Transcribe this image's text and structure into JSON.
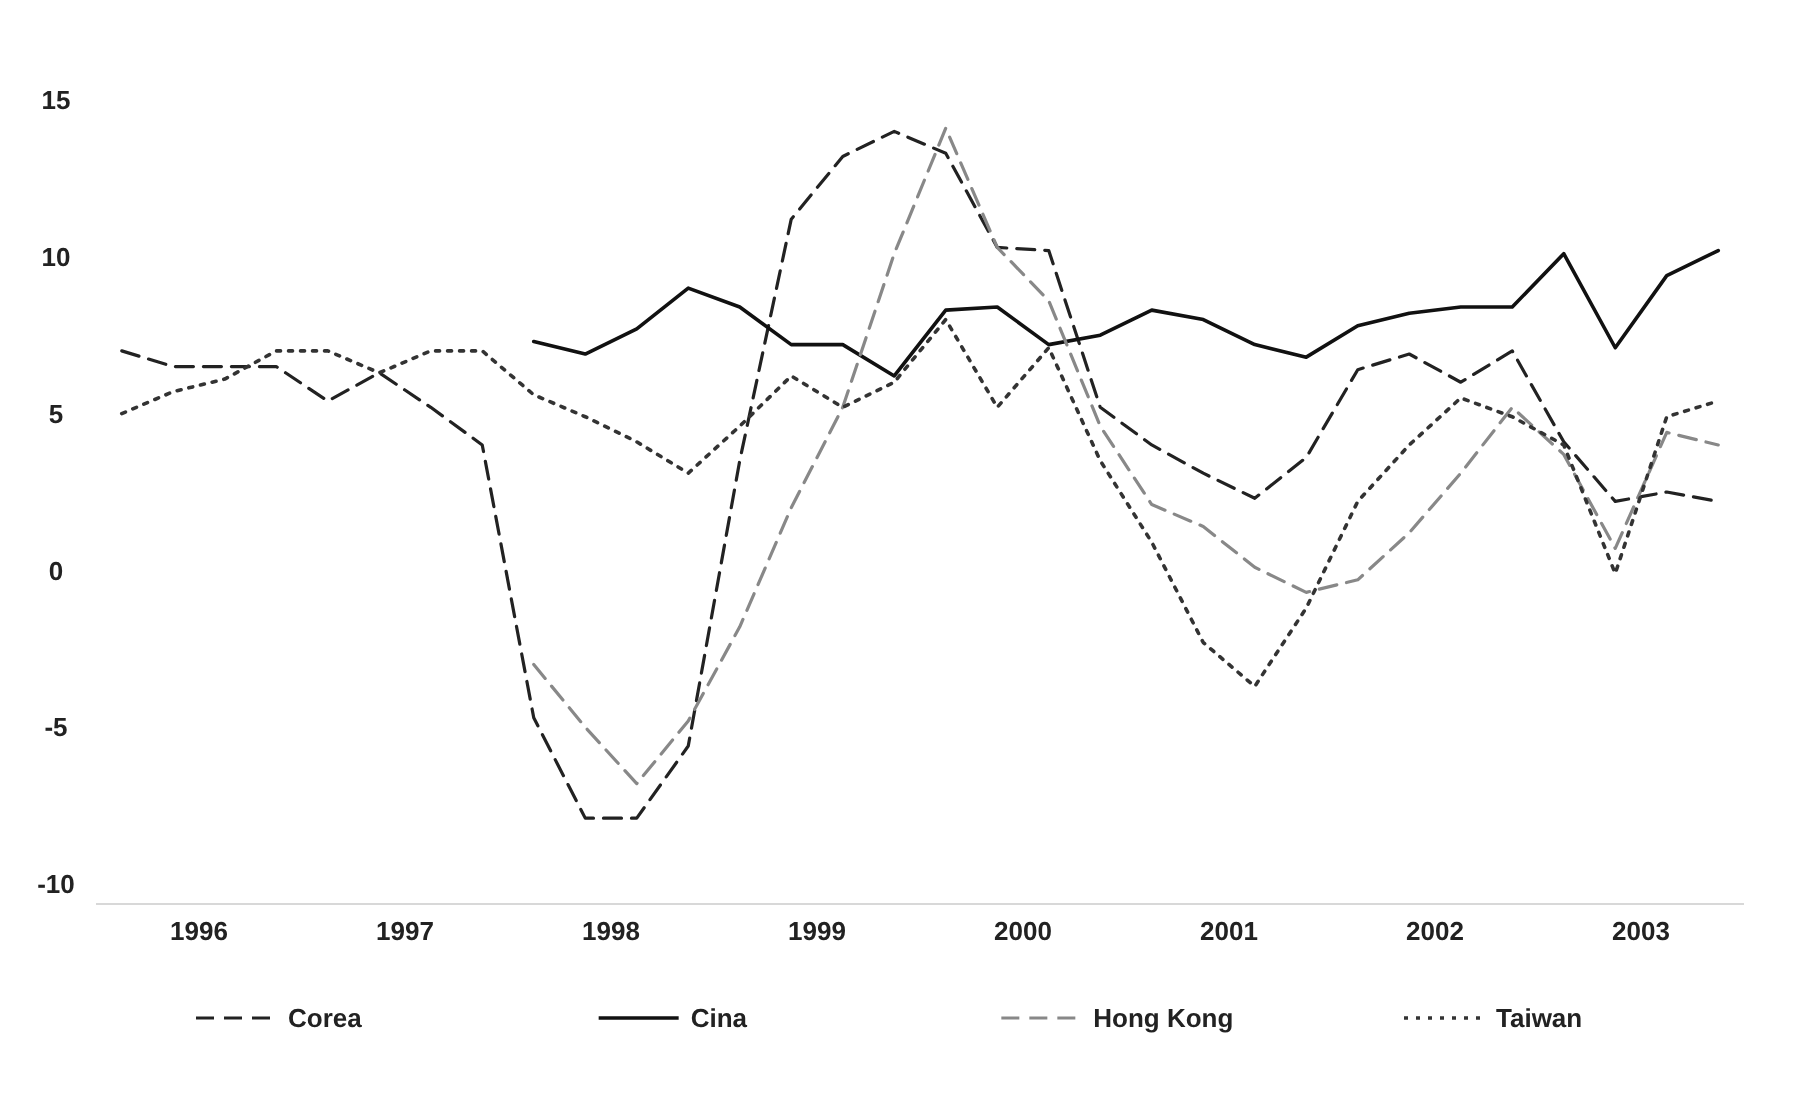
{
  "chart_data": {
    "type": "line",
    "xlim": [
      1996,
      2004
    ],
    "xticks": [
      {
        "value": 1996.5,
        "label": "1996"
      },
      {
        "value": 1997.5,
        "label": "1997"
      },
      {
        "value": 1998.5,
        "label": "1998"
      },
      {
        "value": 1999.5,
        "label": "1999"
      },
      {
        "value": 2000.5,
        "label": "2000"
      },
      {
        "value": 2001.5,
        "label": "2001"
      },
      {
        "value": 2002.5,
        "label": "2002"
      },
      {
        "value": 2003.5,
        "label": "2003"
      }
    ],
    "ylim": [
      -10,
      15
    ],
    "yticks": [
      -10,
      -5,
      0,
      5,
      10,
      15
    ],
    "grid": false,
    "legend": "bottom",
    "marker": "none",
    "x": [
      1996.125,
      1996.375,
      1996.625,
      1996.875,
      1997.125,
      1997.375,
      1997.625,
      1997.875,
      1998.125,
      1998.375,
      1998.625,
      1998.875,
      1999.125,
      1999.375,
      1999.625,
      1999.875,
      2000.125,
      2000.375,
      2000.625,
      2000.875,
      2001.125,
      2001.375,
      2001.625,
      2001.875,
      2002.125,
      2002.375,
      2002.625,
      2002.875,
      2003.125,
      2003.375,
      2003.625,
      2003.875
    ],
    "series": [
      {
        "name": "Corea",
        "color": "#222222",
        "line_style": "dashed",
        "values": [
          7.0,
          6.5,
          6.5,
          6.5,
          5.4,
          6.3,
          5.2,
          4.0,
          -4.7,
          -7.9,
          -7.9,
          -5.6,
          3.5,
          11.2,
          13.2,
          14.0,
          13.3,
          10.3,
          10.2,
          5.2,
          4.0,
          3.1,
          2.3,
          3.6,
          6.4,
          6.9,
          6.0,
          7.0,
          4.1,
          2.2,
          2.5,
          2.2
        ]
      },
      {
        "name": "Cina",
        "color": "#111111",
        "line_style": "solid",
        "values": [
          null,
          null,
          null,
          null,
          null,
          null,
          null,
          null,
          7.3,
          6.9,
          7.7,
          9.0,
          8.4,
          7.2,
          7.2,
          6.2,
          8.3,
          8.4,
          7.2,
          7.5,
          8.3,
          8.0,
          7.2,
          6.8,
          7.8,
          8.2,
          8.4,
          8.4,
          10.1,
          7.1,
          9.4,
          10.2
        ]
      },
      {
        "name": "Hong Kong",
        "color": "#888888",
        "line_style": "dashed",
        "values": [
          null,
          null,
          null,
          null,
          null,
          null,
          null,
          null,
          -3.0,
          -5.0,
          -6.8,
          -4.8,
          -1.8,
          2.0,
          5.2,
          10.1,
          14.1,
          10.3,
          8.6,
          4.6,
          2.1,
          1.4,
          0.1,
          -0.7,
          -0.3,
          1.2,
          3.1,
          5.2,
          3.7,
          0.7,
          4.4,
          4.0
        ]
      },
      {
        "name": "Taiwan",
        "color": "#333333",
        "line_style": "dotted",
        "values": [
          5.0,
          5.7,
          6.1,
          7.0,
          7.0,
          6.3,
          7.0,
          7.0,
          5.6,
          4.9,
          4.1,
          3.1,
          4.6,
          6.2,
          5.2,
          6.0,
          8.0,
          5.2,
          7.1,
          3.5,
          0.9,
          -2.3,
          -3.7,
          -1.2,
          2.2,
          4.0,
          5.5,
          4.9,
          4.0,
          -0.1,
          4.9,
          5.4
        ]
      }
    ]
  }
}
